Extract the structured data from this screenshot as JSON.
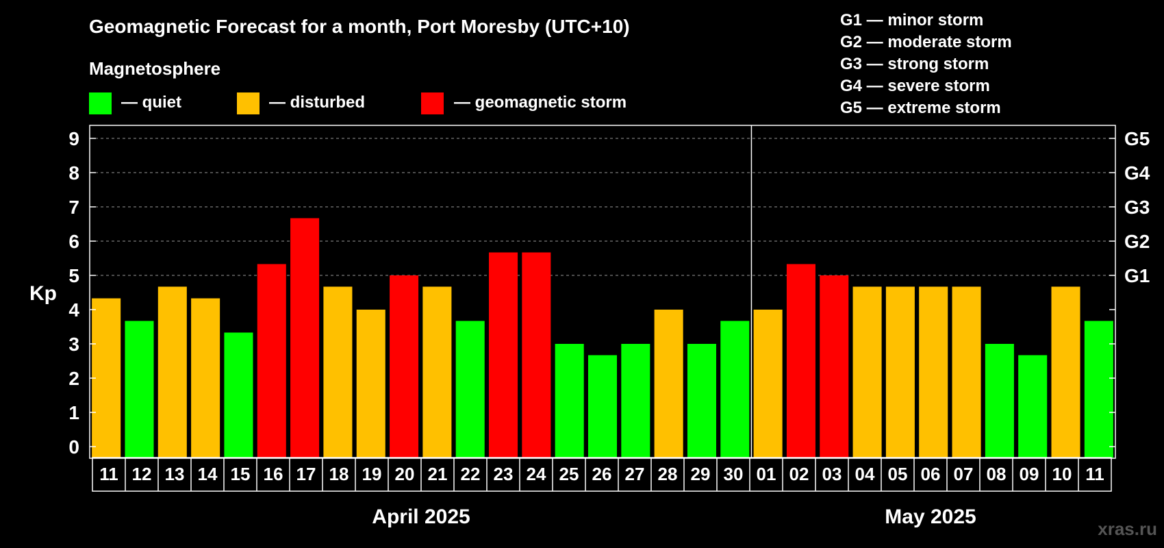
{
  "chart_data": {
    "type": "bar",
    "title": "Geomagnetic Forecast for a month, Port Moresby (UTC+10)",
    "subtitle": "Magnetosphere",
    "ylabel": "Kp",
    "ylim": [
      0,
      9
    ],
    "yticks": [
      "0",
      "1",
      "2",
      "3",
      "4",
      "5",
      "6",
      "7",
      "8",
      "9"
    ],
    "right_ticks": [
      {
        "value": 5,
        "label": "G1"
      },
      {
        "value": 6,
        "label": "G2"
      },
      {
        "value": 7,
        "label": "G3"
      },
      {
        "value": 8,
        "label": "G4"
      },
      {
        "value": 9,
        "label": "G5"
      }
    ],
    "legend": [
      {
        "key": "quiet",
        "label": "— quiet",
        "color": "#00ff00"
      },
      {
        "key": "disturbed",
        "label": "— disturbed",
        "color": "#ffc000"
      },
      {
        "key": "storm",
        "label": "— geomagnetic storm",
        "color": "#ff0000"
      }
    ],
    "storm_scale": [
      "G1 — minor storm",
      "G2 — moderate storm",
      "G3 — strong storm",
      "G4 — severe storm",
      "G5 — extreme storm"
    ],
    "categories": [
      "11",
      "12",
      "13",
      "14",
      "15",
      "16",
      "17",
      "18",
      "19",
      "20",
      "21",
      "22",
      "23",
      "24",
      "25",
      "26",
      "27",
      "28",
      "29",
      "30",
      "01",
      "02",
      "03",
      "04",
      "05",
      "06",
      "07",
      "08",
      "09",
      "10",
      "11"
    ],
    "values": [
      4.33,
      3.67,
      4.67,
      4.33,
      3.33,
      5.33,
      6.67,
      4.67,
      4.0,
      5.0,
      4.67,
      3.67,
      5.67,
      5.67,
      3.0,
      2.67,
      3.0,
      4.0,
      3.0,
      3.67,
      4.0,
      5.33,
      5.0,
      4.67,
      4.67,
      4.67,
      4.67,
      3.0,
      2.67,
      4.67,
      3.67
    ],
    "status": [
      "disturbed",
      "quiet",
      "disturbed",
      "disturbed",
      "quiet",
      "storm",
      "storm",
      "disturbed",
      "disturbed",
      "storm",
      "disturbed",
      "quiet",
      "storm",
      "storm",
      "quiet",
      "quiet",
      "quiet",
      "disturbed",
      "quiet",
      "quiet",
      "disturbed",
      "storm",
      "storm",
      "disturbed",
      "disturbed",
      "disturbed",
      "disturbed",
      "quiet",
      "quiet",
      "disturbed",
      "quiet"
    ],
    "months": [
      {
        "label": "April 2025",
        "start": 0,
        "count": 20
      },
      {
        "label": "May 2025",
        "start": 20,
        "count": 11
      }
    ],
    "grid": true
  },
  "footer": {
    "site": "xras.ru"
  }
}
